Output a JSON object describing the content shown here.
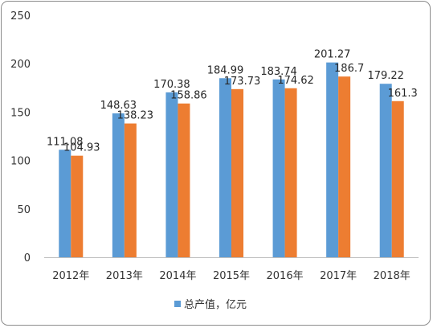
{
  "chart_data": {
    "type": "bar",
    "categories": [
      "2012年",
      "2013年",
      "2014年",
      "2015年",
      "2016年",
      "2017年",
      "2018年"
    ],
    "series": [
      {
        "name": "总产值，亿元",
        "values": [
          111.08,
          148.63,
          170.38,
          184.99,
          183.74,
          201.27,
          179.22
        ],
        "color": "#5B9BD5"
      },
      {
        "name": "",
        "values": [
          104.93,
          138.23,
          158.86,
          173.73,
          174.62,
          186.7,
          161.3
        ],
        "color": "#ED7D31"
      }
    ],
    "data_labels": [
      [
        "111.08",
        "148.63",
        "170.38",
        "184.99",
        "183.74",
        "201.27",
        "179.22"
      ],
      [
        "104.93",
        "138.23",
        "158.86",
        "173.73",
        "174.62",
        "186.7",
        "161.3"
      ]
    ],
    "ylim": [
      0,
      250
    ],
    "yticks": [
      "0",
      "50",
      "100",
      "150",
      "200",
      "250"
    ],
    "xlabel": "",
    "ylabel": "",
    "grid": false,
    "legend_position": "bottom-center"
  }
}
